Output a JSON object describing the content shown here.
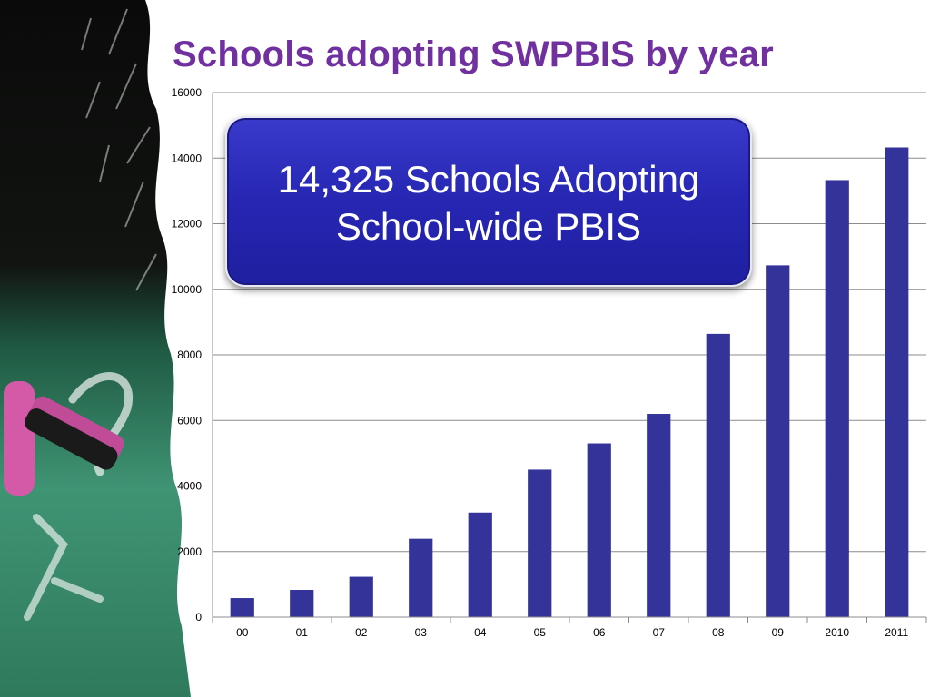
{
  "slide": {
    "title": "Schools adopting SWPBIS by year"
  },
  "callout": {
    "text": "14,325 Schools Adopting\nSchool-wide PBIS"
  },
  "colors": {
    "title": "#7030a0",
    "bar": "#333399",
    "callout_fill": "#2b2bb8",
    "chalkboard": "#2e7d5b",
    "chalk_pink": "#d45aa8"
  },
  "decoration": {
    "left_image": "chalkboard-with-pink-chalk"
  },
  "chart_data": {
    "type": "bar",
    "categories": [
      "00",
      "01",
      "02",
      "03",
      "04",
      "05",
      "06",
      "07",
      "08",
      "09",
      "2010",
      "2011"
    ],
    "values": [
      580,
      830,
      1230,
      2390,
      3190,
      4500,
      5300,
      6200,
      8640,
      10730,
      13330,
      14325
    ],
    "ylim": [
      0,
      16000
    ],
    "yticks": [
      0,
      2000,
      4000,
      6000,
      8000,
      10000,
      12000,
      14000,
      16000
    ],
    "grid": true,
    "legend": "none"
  }
}
